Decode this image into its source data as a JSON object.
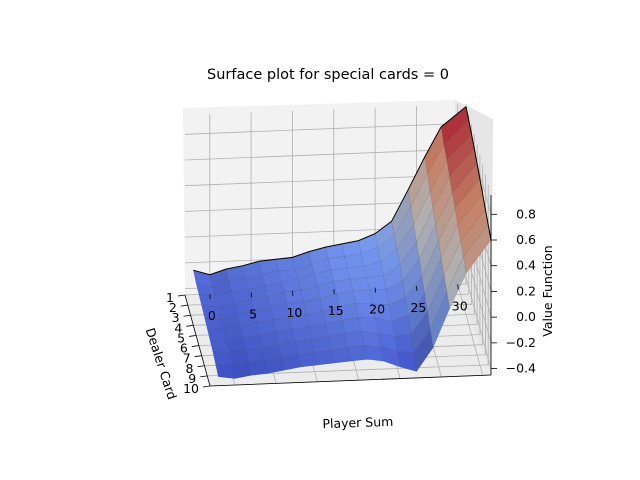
{
  "chart_data": {
    "type": "surface3d",
    "title": "Surface plot for special cards = 0",
    "xlabel": "Player Sum",
    "ylabel": "Dealer Card",
    "zlabel": "Value Function",
    "x_ticks": [
      "0",
      "5",
      "10",
      "15",
      "20",
      "25",
      "30"
    ],
    "y_ticks": [
      "1",
      "2",
      "3",
      "4",
      "5",
      "6",
      "7",
      "8",
      "9",
      "10"
    ],
    "z_ticks": [
      "−0.4",
      "−0.2",
      "0.0",
      "0.2",
      "0.4",
      "0.6",
      "0.8"
    ],
    "xlim": [
      -3,
      31
    ],
    "ylim": [
      1,
      10
    ],
    "zlim": [
      -0.45,
      0.95
    ],
    "colormap": "coolwarm",
    "value_range": [
      -0.4,
      0.95
    ],
    "player_sum": [
      -2,
      0,
      2,
      4,
      6,
      8,
      10,
      12,
      14,
      16,
      18,
      20,
      22,
      24,
      26,
      28,
      31
    ],
    "dealer_card": [
      1,
      2,
      3,
      4,
      5,
      6,
      7,
      8,
      9,
      10
    ],
    "series": [
      {
        "dealer_card": 1,
        "values": [
          -0.26,
          -0.3,
          -0.26,
          -0.24,
          -0.21,
          -0.2,
          -0.19,
          -0.15,
          -0.12,
          -0.1,
          -0.08,
          -0.03,
          0.06,
          0.3,
          0.55,
          0.78,
          0.93
        ]
      },
      {
        "dealer_card": 2,
        "values": [
          -0.28,
          -0.32,
          -0.27,
          -0.26,
          -0.23,
          -0.21,
          -0.21,
          -0.17,
          -0.13,
          -0.12,
          -0.1,
          -0.06,
          0.03,
          0.25,
          0.5,
          0.72,
          0.9
        ]
      },
      {
        "dealer_card": 3,
        "values": [
          -0.29,
          -0.3,
          -0.28,
          -0.27,
          -0.24,
          -0.22,
          -0.2,
          -0.17,
          -0.14,
          -0.13,
          -0.12,
          -0.09,
          0.0,
          0.19,
          0.44,
          0.68,
          0.87
        ]
      },
      {
        "dealer_card": 4,
        "values": [
          -0.3,
          -0.32,
          -0.3,
          -0.27,
          -0.25,
          -0.22,
          -0.21,
          -0.18,
          -0.15,
          -0.14,
          -0.13,
          -0.12,
          -0.04,
          0.13,
          0.39,
          0.63,
          0.84
        ]
      },
      {
        "dealer_card": 5,
        "values": [
          -0.31,
          -0.33,
          -0.3,
          -0.28,
          -0.26,
          -0.23,
          -0.22,
          -0.2,
          -0.17,
          -0.15,
          -0.15,
          -0.15,
          -0.09,
          0.08,
          0.34,
          0.58,
          0.8
        ]
      },
      {
        "dealer_card": 6,
        "values": [
          -0.32,
          -0.33,
          -0.31,
          -0.29,
          -0.27,
          -0.25,
          -0.24,
          -0.22,
          -0.19,
          -0.17,
          -0.18,
          -0.19,
          -0.14,
          0.02,
          0.29,
          0.54,
          0.76
        ]
      },
      {
        "dealer_card": 7,
        "values": [
          -0.33,
          -0.35,
          -0.32,
          -0.31,
          -0.29,
          -0.27,
          -0.26,
          -0.24,
          -0.22,
          -0.2,
          -0.21,
          -0.24,
          -0.2,
          -0.04,
          0.24,
          0.49,
          0.72
        ]
      },
      {
        "dealer_card": 8,
        "values": [
          -0.34,
          -0.36,
          -0.34,
          -0.33,
          -0.31,
          -0.29,
          -0.28,
          -0.26,
          -0.24,
          -0.23,
          -0.25,
          -0.28,
          -0.27,
          -0.1,
          0.18,
          0.44,
          0.68
        ]
      },
      {
        "dealer_card": 9,
        "values": [
          -0.36,
          -0.38,
          -0.36,
          -0.35,
          -0.33,
          -0.31,
          -0.3,
          -0.29,
          -0.27,
          -0.26,
          -0.28,
          -0.32,
          -0.33,
          -0.16,
          0.13,
          0.4,
          0.64
        ]
      },
      {
        "dealer_card": 10,
        "values": [
          -0.38,
          -0.4,
          -0.38,
          -0.37,
          -0.35,
          -0.33,
          -0.32,
          -0.31,
          -0.3,
          -0.29,
          -0.31,
          -0.36,
          -0.4,
          -0.22,
          0.08,
          0.35,
          0.6
        ]
      }
    ]
  }
}
